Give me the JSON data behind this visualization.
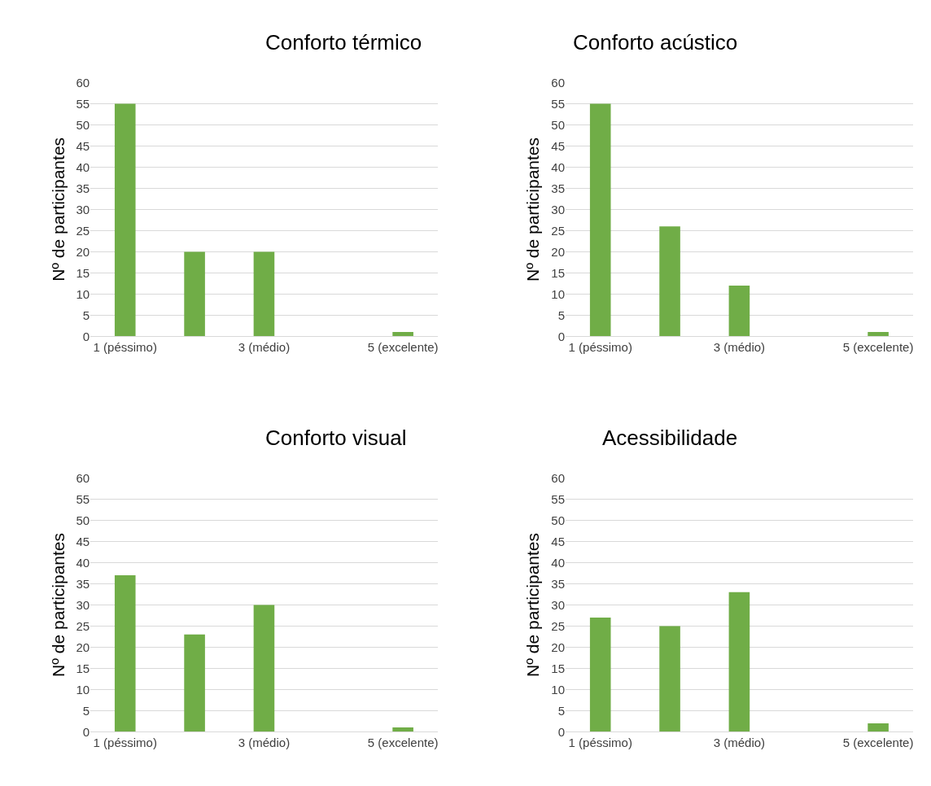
{
  "chart_data": [
    {
      "type": "bar",
      "title": "Conforto térmico",
      "ylabel": "Nº de participantes",
      "categories": [
        "1 (péssimo)",
        null,
        "3 (médio)",
        null,
        "5 (excelente)"
      ],
      "values": [
        55,
        20,
        20,
        0,
        1
      ],
      "color": "#70ad47",
      "ylim": [
        0,
        60
      ],
      "yticks": [
        0,
        5,
        10,
        15,
        20,
        25,
        30,
        35,
        40,
        45,
        50,
        55,
        60
      ],
      "grid": "y"
    },
    {
      "type": "bar",
      "title": "Conforto acústico",
      "ylabel": "Nº de participantes",
      "categories": [
        "1 (péssimo)",
        null,
        "3 (médio)",
        null,
        "5 (excelente)"
      ],
      "values": [
        55,
        26,
        12,
        0,
        1
      ],
      "color": "#70ad47",
      "ylim": [
        0,
        60
      ],
      "yticks": [
        0,
        5,
        10,
        15,
        20,
        25,
        30,
        35,
        40,
        45,
        50,
        55,
        60
      ],
      "grid": "y"
    },
    {
      "type": "bar",
      "title": "Conforto visual",
      "ylabel": "Nº de participantes",
      "categories": [
        "1 (péssimo)",
        null,
        "3 (médio)",
        null,
        "5 (excelente)"
      ],
      "values": [
        37,
        23,
        30,
        0,
        1
      ],
      "color": "#70ad47",
      "ylim": [
        0,
        60
      ],
      "yticks": [
        0,
        5,
        10,
        15,
        20,
        25,
        30,
        35,
        40,
        45,
        50,
        55,
        60
      ],
      "grid": "y"
    },
    {
      "type": "bar",
      "title": "Acessibilidade",
      "ylabel": "Nº de participantes",
      "categories": [
        "1 (péssimo)",
        null,
        "3 (médio)",
        null,
        "5 (excelente)"
      ],
      "values": [
        27,
        25,
        33,
        0,
        2
      ],
      "color": "#70ad47",
      "ylim": [
        0,
        60
      ],
      "yticks": [
        0,
        5,
        10,
        15,
        20,
        25,
        30,
        35,
        40,
        45,
        50,
        55,
        60
      ],
      "grid": "y"
    }
  ]
}
